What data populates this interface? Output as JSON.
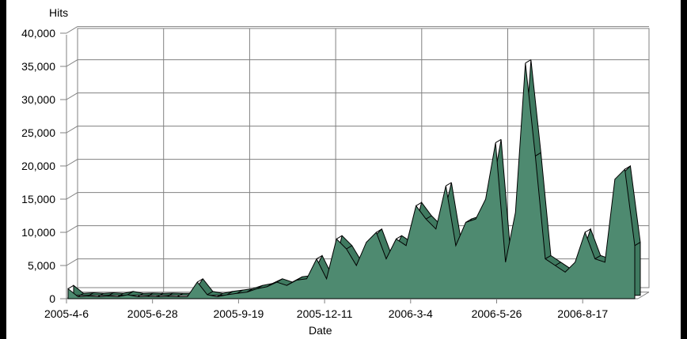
{
  "chart_data": {
    "type": "area",
    "title": "",
    "xlabel": "Date",
    "ylabel": "Hits",
    "ylim": [
      0,
      40000
    ],
    "y_ticks": [
      "0",
      "5,000",
      "10,000",
      "15,000",
      "20,000",
      "25,000",
      "30,000",
      "35,000",
      "40,000"
    ],
    "x_tick_labels": [
      "2005-4-6",
      "2005-6-28",
      "2005-9-19",
      "2005-12-11",
      "2006-3-4",
      "2006-5-26",
      "2006-8-17"
    ],
    "grid": true,
    "legend": "none",
    "series": [
      {
        "color": "#4e8a70",
        "x": [
          "2005-4-6",
          "2005-4-20",
          "2005-5-4",
          "2005-5-18",
          "2005-6-1",
          "2005-6-15",
          "2005-6-28",
          "2005-7-12",
          "2005-7-26",
          "2005-8-9",
          "2005-8-23",
          "2005-9-6",
          "2005-9-19",
          "2005-10-3",
          "2005-10-10",
          "2005-10-17",
          "2005-10-31",
          "2005-11-14",
          "2005-11-28",
          "2005-12-11",
          "2005-12-25",
          "2006-1-8",
          "2006-1-22",
          "2006-2-5",
          "2006-2-19",
          "2006-2-26",
          "2006-3-4",
          "2006-3-11",
          "2006-3-18",
          "2006-3-25",
          "2006-4-1",
          "2006-4-8",
          "2006-4-15",
          "2006-4-22",
          "2006-4-29",
          "2006-5-6",
          "2006-5-13",
          "2006-5-20",
          "2006-5-26",
          "2006-6-2",
          "2006-6-9",
          "2006-6-16",
          "2006-6-23",
          "2006-6-30",
          "2006-7-7",
          "2006-7-14",
          "2006-7-21",
          "2006-7-28",
          "2006-8-4",
          "2006-8-10",
          "2006-8-17",
          "2006-8-24",
          "2006-8-31",
          "2006-9-7",
          "2006-9-14",
          "2006-9-21",
          "2006-9-28",
          "2006-10-3"
        ],
        "values": [
          1500,
          300,
          400,
          300,
          400,
          300,
          600,
          300,
          350,
          300,
          350,
          300,
          300,
          2500,
          600,
          300,
          600,
          800,
          1000,
          1500,
          1800,
          2500,
          2000,
          2800,
          3000,
          6000,
          3000,
          9000,
          7500,
          5000,
          8500,
          10000,
          6000,
          9000,
          8000,
          14000,
          12000,
          10500,
          17000,
          8000,
          11500,
          12000,
          15000,
          23500,
          5500,
          13000,
          35500,
          21500,
          6000,
          5000,
          4000,
          5500,
          10000,
          6000,
          5500,
          18000,
          19500,
          8000
        ]
      }
    ]
  }
}
